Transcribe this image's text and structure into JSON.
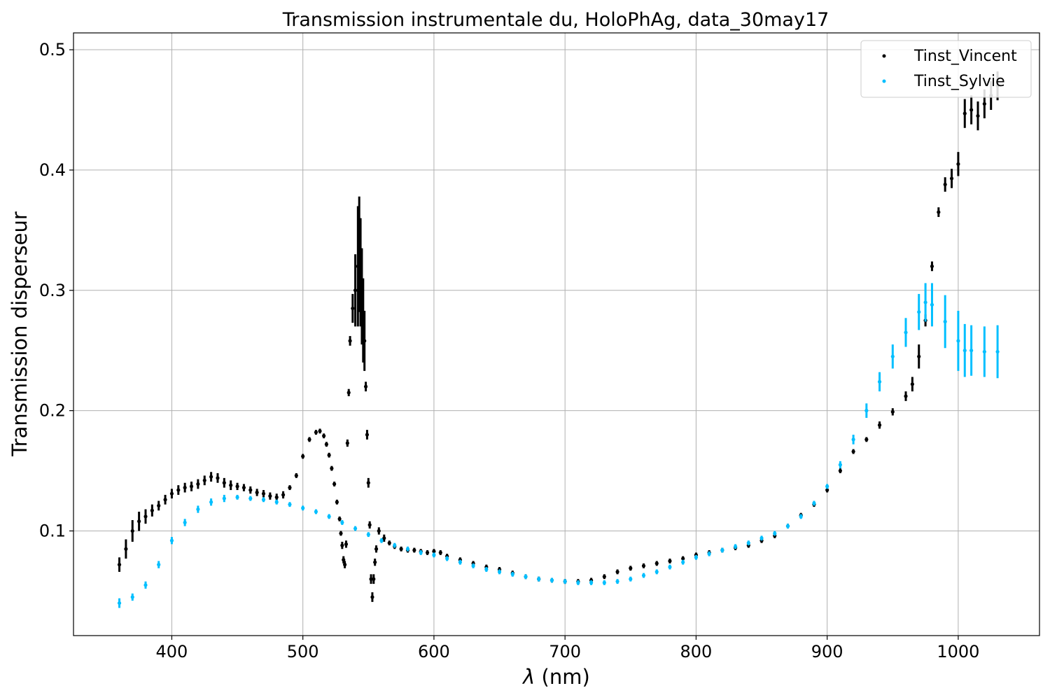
{
  "chart_data": {
    "type": "scatter",
    "title": "Transmission instrumentale du, HoloPhAg, data_30may17",
    "xlabel_symbol": "λ",
    "xlabel_unit": " (nm)",
    "ylabel": "Transmission disperseur",
    "xlim": [
      325,
      1062
    ],
    "ylim": [
      0.013,
      0.514
    ],
    "xticks": [
      400,
      500,
      600,
      700,
      800,
      900,
      1000
    ],
    "yticks": [
      0.1,
      0.2,
      0.3,
      0.4,
      0.5
    ],
    "xtick_labels": [
      "400",
      "500",
      "600",
      "700",
      "800",
      "900",
      "1000"
    ],
    "ytick_labels": [
      "0.1",
      "0.2",
      "0.3",
      "0.4",
      "0.5"
    ],
    "grid": true,
    "legend_position": "top-right",
    "series": [
      {
        "name": "Tinst_Vincent",
        "color": "#000000",
        "points": [
          [
            360,
            0.072,
            0.006
          ],
          [
            365,
            0.085,
            0.008
          ],
          [
            370,
            0.1,
            0.009
          ],
          [
            375,
            0.108,
            0.008
          ],
          [
            380,
            0.112,
            0.006
          ],
          [
            385,
            0.117,
            0.005
          ],
          [
            390,
            0.121,
            0.004
          ],
          [
            395,
            0.126,
            0.004
          ],
          [
            400,
            0.131,
            0.004
          ],
          [
            405,
            0.134,
            0.004
          ],
          [
            410,
            0.136,
            0.004
          ],
          [
            415,
            0.137,
            0.004
          ],
          [
            420,
            0.139,
            0.004
          ],
          [
            425,
            0.142,
            0.004
          ],
          [
            430,
            0.145,
            0.004
          ],
          [
            435,
            0.144,
            0.004
          ],
          [
            440,
            0.14,
            0.004
          ],
          [
            445,
            0.138,
            0.004
          ],
          [
            450,
            0.137,
            0.003
          ],
          [
            455,
            0.136,
            0.003
          ],
          [
            460,
            0.134,
            0.003
          ],
          [
            465,
            0.132,
            0.003
          ],
          [
            470,
            0.131,
            0.003
          ],
          [
            475,
            0.129,
            0.003
          ],
          [
            480,
            0.128,
            0.003
          ],
          [
            485,
            0.13,
            0.003
          ],
          [
            490,
            0.136,
            0.002
          ],
          [
            495,
            0.146,
            0.002
          ],
          [
            500,
            0.162,
            0.002
          ],
          [
            505,
            0.176,
            0.002
          ],
          [
            510,
            0.182,
            0.002
          ],
          [
            513,
            0.183,
            0.002
          ],
          [
            516,
            0.179,
            0.002
          ],
          [
            518,
            0.172,
            0.002
          ],
          [
            520,
            0.163,
            0.002
          ],
          [
            522,
            0.152,
            0.002
          ],
          [
            524,
            0.139,
            0.002
          ],
          [
            526,
            0.124,
            0.002
          ],
          [
            528,
            0.11,
            0.002
          ],
          [
            529,
            0.098,
            0.002
          ],
          [
            530,
            0.088,
            0.003
          ],
          [
            531,
            0.076,
            0.003
          ],
          [
            532,
            0.072,
            0.003
          ],
          [
            533,
            0.089,
            0.003
          ],
          [
            534,
            0.173,
            0.003
          ],
          [
            535,
            0.215,
            0.003
          ],
          [
            536,
            0.258,
            0.004
          ],
          [
            538,
            0.285,
            0.012
          ],
          [
            540,
            0.3,
            0.03
          ],
          [
            542,
            0.32,
            0.05
          ],
          [
            543,
            0.33,
            0.048
          ],
          [
            544,
            0.315,
            0.045
          ],
          [
            545,
            0.295,
            0.04
          ],
          [
            546,
            0.275,
            0.035
          ],
          [
            547,
            0.258,
            0.025
          ],
          [
            548,
            0.22,
            0.004
          ],
          [
            549,
            0.18,
            0.004
          ],
          [
            550,
            0.14,
            0.004
          ],
          [
            551,
            0.105,
            0.003
          ],
          [
            552,
            0.06,
            0.004
          ],
          [
            553,
            0.045,
            0.004
          ],
          [
            554,
            0.06,
            0.004
          ],
          [
            555,
            0.074,
            0.003
          ],
          [
            556,
            0.085,
            0.003
          ],
          [
            558,
            0.1,
            0.003
          ],
          [
            562,
            0.094,
            0.003
          ],
          [
            566,
            0.09,
            0.002
          ],
          [
            570,
            0.087,
            0.002
          ],
          [
            575,
            0.085,
            0.002
          ],
          [
            580,
            0.084,
            0.002
          ],
          [
            585,
            0.084,
            0.002
          ],
          [
            590,
            0.083,
            0.002
          ],
          [
            595,
            0.082,
            0.002
          ],
          [
            600,
            0.083,
            0.002
          ],
          [
            605,
            0.082,
            0.002
          ],
          [
            610,
            0.079,
            0.002
          ],
          [
            620,
            0.076,
            0.002
          ],
          [
            630,
            0.073,
            0.002
          ],
          [
            640,
            0.07,
            0.002
          ],
          [
            650,
            0.068,
            0.002
          ],
          [
            660,
            0.065,
            0.002
          ],
          [
            670,
            0.062,
            0.002
          ],
          [
            680,
            0.06,
            0.002
          ],
          [
            690,
            0.059,
            0.002
          ],
          [
            700,
            0.058,
            0.002
          ],
          [
            710,
            0.058,
            0.002
          ],
          [
            720,
            0.059,
            0.002
          ],
          [
            730,
            0.062,
            0.002
          ],
          [
            740,
            0.066,
            0.002
          ],
          [
            750,
            0.069,
            0.002
          ],
          [
            760,
            0.071,
            0.002
          ],
          [
            770,
            0.073,
            0.002
          ],
          [
            780,
            0.075,
            0.002
          ],
          [
            790,
            0.077,
            0.002
          ],
          [
            800,
            0.08,
            0.002
          ],
          [
            810,
            0.082,
            0.002
          ],
          [
            820,
            0.084,
            0.002
          ],
          [
            830,
            0.086,
            0.002
          ],
          [
            840,
            0.088,
            0.002
          ],
          [
            850,
            0.092,
            0.002
          ],
          [
            860,
            0.096,
            0.002
          ],
          [
            870,
            0.104,
            0.002
          ],
          [
            880,
            0.113,
            0.002
          ],
          [
            890,
            0.122,
            0.002
          ],
          [
            900,
            0.134,
            0.002
          ],
          [
            910,
            0.15,
            0.002
          ],
          [
            920,
            0.166,
            0.002
          ],
          [
            930,
            0.176,
            0.002
          ],
          [
            940,
            0.188,
            0.003
          ],
          [
            950,
            0.199,
            0.003
          ],
          [
            960,
            0.212,
            0.004
          ],
          [
            965,
            0.222,
            0.006
          ],
          [
            970,
            0.245,
            0.01
          ],
          [
            975,
            0.275,
            0.005
          ],
          [
            980,
            0.32,
            0.004
          ],
          [
            985,
            0.365,
            0.004
          ],
          [
            990,
            0.388,
            0.006
          ],
          [
            995,
            0.393,
            0.008
          ],
          [
            1000,
            0.405,
            0.01
          ],
          [
            1005,
            0.447,
            0.012
          ],
          [
            1010,
            0.45,
            0.012
          ],
          [
            1015,
            0.445,
            0.012
          ],
          [
            1020,
            0.455,
            0.012
          ],
          [
            1025,
            0.462,
            0.012
          ],
          [
            1030,
            0.47,
            0.012
          ]
        ]
      },
      {
        "name": "Tinst_Sylvie",
        "color": "#00bfff",
        "points": [
          [
            360,
            0.04,
            0.004
          ],
          [
            370,
            0.045,
            0.003
          ],
          [
            380,
            0.055,
            0.003
          ],
          [
            390,
            0.072,
            0.003
          ],
          [
            400,
            0.092,
            0.003
          ],
          [
            410,
            0.107,
            0.003
          ],
          [
            420,
            0.118,
            0.003
          ],
          [
            430,
            0.124,
            0.003
          ],
          [
            440,
            0.127,
            0.003
          ],
          [
            450,
            0.128,
            0.002
          ],
          [
            460,
            0.127,
            0.002
          ],
          [
            470,
            0.126,
            0.002
          ],
          [
            480,
            0.124,
            0.002
          ],
          [
            490,
            0.122,
            0.002
          ],
          [
            500,
            0.119,
            0.002
          ],
          [
            510,
            0.116,
            0.002
          ],
          [
            520,
            0.112,
            0.002
          ],
          [
            530,
            0.107,
            0.002
          ],
          [
            540,
            0.102,
            0.002
          ],
          [
            550,
            0.097,
            0.002
          ],
          [
            560,
            0.092,
            0.002
          ],
          [
            570,
            0.088,
            0.002
          ],
          [
            580,
            0.085,
            0.002
          ],
          [
            590,
            0.082,
            0.002
          ],
          [
            600,
            0.08,
            0.002
          ],
          [
            610,
            0.077,
            0.002
          ],
          [
            620,
            0.074,
            0.002
          ],
          [
            630,
            0.071,
            0.002
          ],
          [
            640,
            0.068,
            0.002
          ],
          [
            650,
            0.066,
            0.002
          ],
          [
            660,
            0.064,
            0.002
          ],
          [
            670,
            0.062,
            0.002
          ],
          [
            680,
            0.06,
            0.002
          ],
          [
            690,
            0.059,
            0.002
          ],
          [
            700,
            0.058,
            0.002
          ],
          [
            710,
            0.057,
            0.002
          ],
          [
            720,
            0.057,
            0.002
          ],
          [
            730,
            0.057,
            0.002
          ],
          [
            740,
            0.058,
            0.002
          ],
          [
            750,
            0.06,
            0.002
          ],
          [
            760,
            0.063,
            0.002
          ],
          [
            770,
            0.066,
            0.002
          ],
          [
            780,
            0.07,
            0.002
          ],
          [
            790,
            0.074,
            0.002
          ],
          [
            800,
            0.078,
            0.002
          ],
          [
            810,
            0.081,
            0.002
          ],
          [
            820,
            0.084,
            0.002
          ],
          [
            830,
            0.087,
            0.002
          ],
          [
            840,
            0.09,
            0.002
          ],
          [
            850,
            0.094,
            0.002
          ],
          [
            860,
            0.098,
            0.002
          ],
          [
            870,
            0.104,
            0.002
          ],
          [
            880,
            0.112,
            0.002
          ],
          [
            890,
            0.123,
            0.002
          ],
          [
            900,
            0.137,
            0.002
          ],
          [
            910,
            0.155,
            0.003
          ],
          [
            920,
            0.176,
            0.004
          ],
          [
            930,
            0.2,
            0.006
          ],
          [
            940,
            0.224,
            0.008
          ],
          [
            950,
            0.245,
            0.01
          ],
          [
            960,
            0.265,
            0.012
          ],
          [
            970,
            0.282,
            0.015
          ],
          [
            975,
            0.29,
            0.016
          ],
          [
            980,
            0.288,
            0.018
          ],
          [
            990,
            0.274,
            0.022
          ],
          [
            1000,
            0.258,
            0.025
          ],
          [
            1005,
            0.25,
            0.022
          ],
          [
            1010,
            0.25,
            0.021
          ],
          [
            1020,
            0.249,
            0.021
          ],
          [
            1030,
            0.249,
            0.022
          ]
        ]
      }
    ]
  }
}
